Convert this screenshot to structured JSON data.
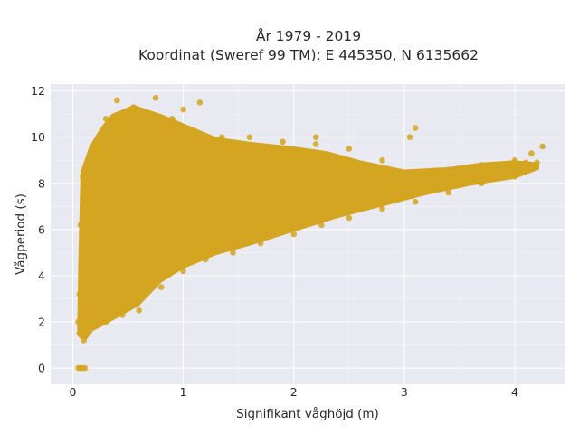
{
  "chart_data": {
    "type": "scatter",
    "title_line1": "År 1979 - 2019",
    "title_line2": "Koordinat (Sweref 99 TM): E 445350, N 6135662",
    "xlabel": "Signifikant våghöjd (m)",
    "ylabel": "Vågperiod (s)",
    "xlim": [
      -0.2,
      4.45
    ],
    "ylim": [
      -0.7,
      12.3
    ],
    "xticks": [
      0,
      1,
      2,
      3,
      4
    ],
    "yticks": [
      0,
      2,
      4,
      6,
      8,
      10,
      12
    ],
    "xtick_labels": [
      "0",
      "1",
      "2",
      "3",
      "4"
    ],
    "ytick_labels": [
      "0",
      "2",
      "4",
      "6",
      "8",
      "10",
      "12"
    ],
    "grid": true,
    "marker_color": "#D4A520",
    "plot_background": "#E9E9F1",
    "series": [
      {
        "points": [
          [
            0.05,
            0.0
          ],
          [
            0.07,
            0.0
          ],
          [
            0.09,
            0.0
          ],
          [
            0.11,
            0.0
          ],
          [
            0.05,
            2.0
          ],
          [
            0.06,
            3.2
          ],
          [
            0.08,
            4.5
          ],
          [
            0.07,
            6.2
          ],
          [
            0.09,
            8.3
          ],
          [
            0.06,
            1.5
          ],
          [
            0.1,
            1.2
          ],
          [
            0.15,
            1.6
          ],
          [
            0.18,
            2.4
          ],
          [
            0.2,
            3.5
          ],
          [
            0.22,
            5.0
          ],
          [
            0.2,
            7.3
          ],
          [
            0.22,
            9.6
          ],
          [
            0.3,
            2.0
          ],
          [
            0.32,
            3.3
          ],
          [
            0.35,
            5.5
          ],
          [
            0.33,
            7.8
          ],
          [
            0.35,
            10.0
          ],
          [
            0.3,
            10.8
          ],
          [
            0.4,
            11.6
          ],
          [
            0.45,
            2.3
          ],
          [
            0.48,
            4.0
          ],
          [
            0.5,
            6.5
          ],
          [
            0.5,
            9.0
          ],
          [
            0.52,
            10.5
          ],
          [
            0.55,
            11.3
          ],
          [
            0.6,
            2.5
          ],
          [
            0.65,
            3.8
          ],
          [
            0.65,
            6.0
          ],
          [
            0.7,
            8.0
          ],
          [
            0.72,
            10.0
          ],
          [
            0.75,
            11.7
          ],
          [
            0.8,
            3.5
          ],
          [
            0.85,
            4.5
          ],
          [
            0.85,
            7.0
          ],
          [
            0.9,
            9.0
          ],
          [
            0.9,
            10.8
          ],
          [
            1.0,
            11.2
          ],
          [
            1.0,
            4.2
          ],
          [
            1.0,
            6.5
          ],
          [
            1.05,
            8.5
          ],
          [
            1.1,
            10.0
          ],
          [
            1.15,
            11.5
          ],
          [
            1.2,
            4.7
          ],
          [
            1.25,
            6.0
          ],
          [
            1.3,
            7.5
          ],
          [
            1.3,
            9.0
          ],
          [
            1.35,
            10.0
          ],
          [
            1.45,
            5.0
          ],
          [
            1.5,
            6.3
          ],
          [
            1.55,
            8.0
          ],
          [
            1.6,
            9.3
          ],
          [
            1.6,
            10.0
          ],
          [
            1.7,
            5.4
          ],
          [
            1.75,
            6.5
          ],
          [
            1.8,
            7.6
          ],
          [
            1.85,
            9.0
          ],
          [
            1.9,
            9.8
          ],
          [
            2.0,
            5.8
          ],
          [
            2.05,
            6.8
          ],
          [
            2.1,
            8.0
          ],
          [
            2.2,
            9.7
          ],
          [
            2.2,
            10.0
          ],
          [
            2.25,
            6.2
          ],
          [
            2.35,
            7.0
          ],
          [
            2.4,
            8.3
          ],
          [
            2.5,
            9.5
          ],
          [
            2.5,
            6.5
          ],
          [
            2.6,
            7.2
          ],
          [
            2.7,
            8.5
          ],
          [
            2.8,
            9.0
          ],
          [
            2.8,
            6.9
          ],
          [
            2.9,
            7.6
          ],
          [
            3.0,
            8.0
          ],
          [
            3.05,
            10.0
          ],
          [
            3.1,
            10.4
          ],
          [
            3.1,
            7.2
          ],
          [
            3.2,
            7.8
          ],
          [
            3.3,
            8.4
          ],
          [
            3.4,
            8.6
          ],
          [
            3.4,
            7.6
          ],
          [
            3.5,
            8.0
          ],
          [
            3.6,
            8.6
          ],
          [
            3.7,
            8.8
          ],
          [
            3.7,
            8.0
          ],
          [
            3.8,
            8.3
          ],
          [
            3.9,
            8.8
          ],
          [
            4.0,
            9.0
          ],
          [
            4.0,
            8.3
          ],
          [
            4.1,
            8.9
          ],
          [
            4.15,
            9.3
          ],
          [
            4.2,
            8.9
          ],
          [
            4.25,
            9.6
          ]
        ]
      }
    ]
  }
}
